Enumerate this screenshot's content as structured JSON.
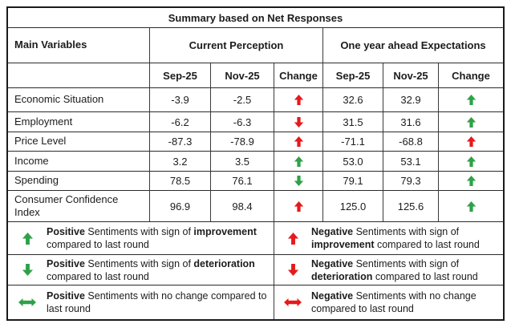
{
  "title": "Summary based on Net Responses",
  "colors": {
    "positive": "#2fa148",
    "negative": "#e51a1c"
  },
  "header": {
    "main_variables": "Main Variables",
    "group1": "Current Perception",
    "group2": "One year ahead Expectations",
    "sub": [
      "Sep-25",
      "Nov-25",
      "Change"
    ]
  },
  "rows": [
    {
      "label": "Economic Situation",
      "cp": [
        "-3.9",
        "-2.5"
      ],
      "cp_change": {
        "dir": "up",
        "tone": "negative"
      },
      "exp": [
        "32.6",
        "32.9"
      ],
      "exp_change": {
        "dir": "up",
        "tone": "positive"
      }
    },
    {
      "label": "Employment",
      "cp": [
        "-6.2",
        "-6.3"
      ],
      "cp_change": {
        "dir": "down",
        "tone": "negative"
      },
      "exp": [
        "31.5",
        "31.6"
      ],
      "exp_change": {
        "dir": "up",
        "tone": "positive"
      }
    },
    {
      "label": "Price Level",
      "cp": [
        "-87.3",
        "-78.9"
      ],
      "cp_change": {
        "dir": "up",
        "tone": "negative"
      },
      "exp": [
        "-71.1",
        "-68.8"
      ],
      "exp_change": {
        "dir": "up",
        "tone": "negative"
      }
    },
    {
      "label": "Income",
      "cp": [
        "3.2",
        "3.5"
      ],
      "cp_change": {
        "dir": "up",
        "tone": "positive"
      },
      "exp": [
        "53.0",
        "53.1"
      ],
      "exp_change": {
        "dir": "up",
        "tone": "positive"
      }
    },
    {
      "label": "Spending",
      "cp": [
        "78.5",
        "76.1"
      ],
      "cp_change": {
        "dir": "down",
        "tone": "positive"
      },
      "exp": [
        "79.1",
        "79.3"
      ],
      "exp_change": {
        "dir": "up",
        "tone": "positive"
      }
    },
    {
      "label": "Consumer Confidence Index",
      "cp": [
        "96.9",
        "98.4"
      ],
      "cp_change": {
        "dir": "up",
        "tone": "negative"
      },
      "exp": [
        "125.0",
        "125.6"
      ],
      "exp_change": {
        "dir": "up",
        "tone": "positive"
      }
    }
  ],
  "legend": {
    "left": [
      {
        "arrow": {
          "dir": "up",
          "tone": "positive"
        },
        "parts": [
          {
            "t": "Positive",
            "b": true
          },
          {
            "t": " Sentiments with sign of ",
            "b": false
          },
          {
            "t": "improvement",
            "b": true
          },
          {
            "t": " compared to last round",
            "b": false
          }
        ]
      },
      {
        "arrow": {
          "dir": "down",
          "tone": "positive"
        },
        "parts": [
          {
            "t": "Positive",
            "b": true
          },
          {
            "t": " Sentiments with sign of ",
            "b": false
          },
          {
            "t": "deterioration",
            "b": true
          },
          {
            "t": " compared to last round",
            "b": false
          }
        ]
      },
      {
        "arrow": {
          "dir": "lr",
          "tone": "positive"
        },
        "parts": [
          {
            "t": "Positive",
            "b": true
          },
          {
            "t": " Sentiments with no change compared to last round",
            "b": false
          }
        ]
      }
    ],
    "right": [
      {
        "arrow": {
          "dir": "up",
          "tone": "negative"
        },
        "parts": [
          {
            "t": "Negative",
            "b": true
          },
          {
            "t": " Sentiments with sign of ",
            "b": false
          },
          {
            "t": "improvement",
            "b": true
          },
          {
            "t": " compared to last round",
            "b": false
          }
        ]
      },
      {
        "arrow": {
          "dir": "down",
          "tone": "negative"
        },
        "parts": [
          {
            "t": "Negative",
            "b": true
          },
          {
            "t": " Sentiments with sign of ",
            "b": false
          },
          {
            "t": "deterioration",
            "b": true
          },
          {
            "t": " compared to last round",
            "b": false
          }
        ]
      },
      {
        "arrow": {
          "dir": "lr",
          "tone": "negative"
        },
        "parts": [
          {
            "t": "Negative",
            "b": true
          },
          {
            "t": " Sentiments with no change compared to last round",
            "b": false
          }
        ]
      }
    ]
  },
  "chart_data": {
    "type": "table",
    "title": "Summary based on Net Responses",
    "column_groups": [
      "Current Perception",
      "One year ahead Expectations"
    ],
    "columns": [
      "Main Variables",
      "Current Perception Sep-25",
      "Current Perception Nov-25",
      "Current Perception Change",
      "One year ahead Expectations Sep-25",
      "One year ahead Expectations Nov-25",
      "One year ahead Expectations Change"
    ],
    "rows": [
      [
        "Economic Situation",
        -3.9,
        -2.5,
        "negative up",
        32.6,
        32.9,
        "positive up"
      ],
      [
        "Employment",
        -6.2,
        -6.3,
        "negative down",
        31.5,
        31.6,
        "positive up"
      ],
      [
        "Price Level",
        -87.3,
        -78.9,
        "negative up",
        -71.1,
        -68.8,
        "negative up"
      ],
      [
        "Income",
        3.2,
        3.5,
        "positive up",
        53.0,
        53.1,
        "positive up"
      ],
      [
        "Spending",
        78.5,
        76.1,
        "positive down",
        79.1,
        79.3,
        "positive up"
      ],
      [
        "Consumer Confidence Index",
        96.9,
        98.4,
        "negative up",
        125.0,
        125.6,
        "positive up"
      ]
    ],
    "legend_notes": [
      "green up = Positive Sentiments with sign of improvement compared to last round",
      "green down = Positive Sentiments with sign of deterioration compared to last round",
      "green left-right = Positive Sentiments with no change compared to last round",
      "red up = Negative Sentiments with sign of improvement compared to last round",
      "red down = Negative Sentiments with sign of deterioration compared to last round",
      "red left-right = Negative Sentiments with no change compared to last round"
    ]
  }
}
